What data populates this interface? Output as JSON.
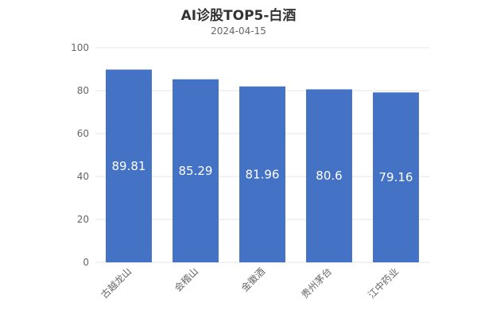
{
  "chart_data": {
    "type": "bar",
    "title": "AI诊股TOP5-白酒",
    "subtitle": "2024-04-15",
    "categories": [
      "古越龙山",
      "会稽山",
      "金徽酒",
      "贵州茅台",
      "江中药业"
    ],
    "values": [
      89.81,
      85.29,
      81.96,
      80.6,
      79.16
    ],
    "data_labels": [
      "89.81",
      "85.29",
      "81.96",
      "80.6",
      "79.16"
    ],
    "ylim": [
      0,
      100
    ],
    "yticks": [
      0,
      20,
      40,
      60,
      80,
      100
    ],
    "grid": true,
    "legend": "none",
    "bar_color": "#4472c4",
    "label_color": "#ffffff"
  }
}
